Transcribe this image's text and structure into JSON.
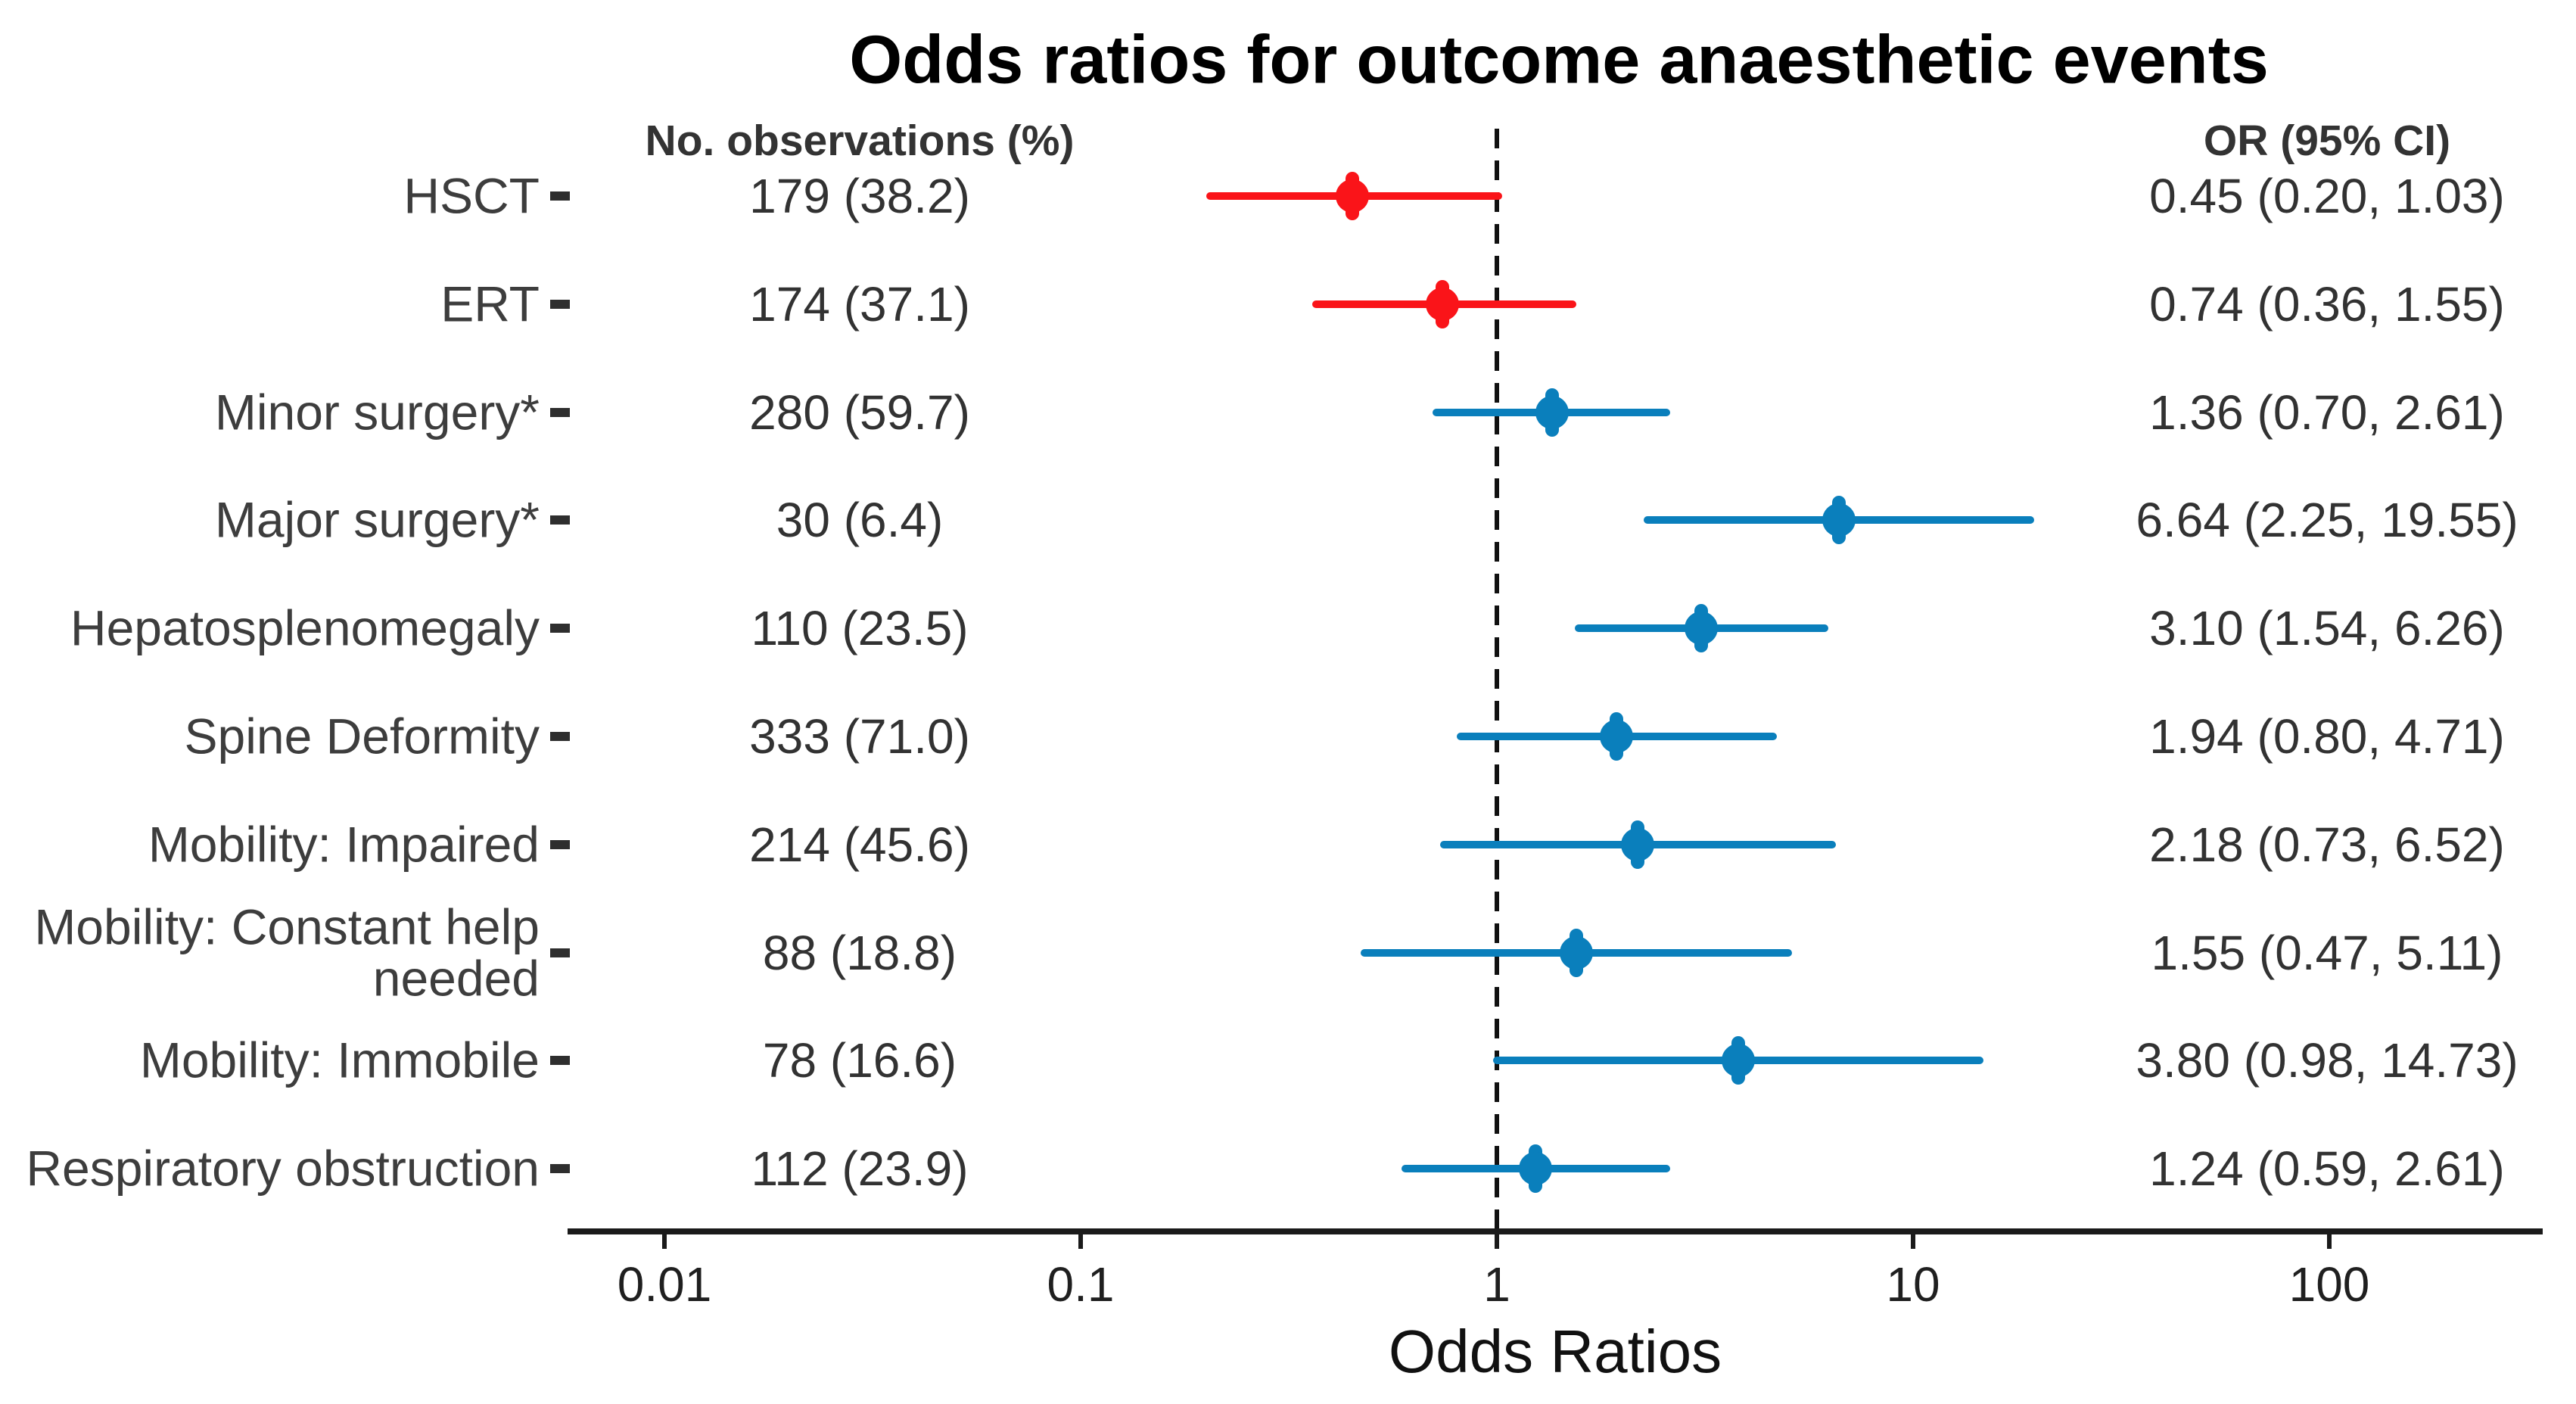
{
  "chart_data": {
    "type": "forest",
    "title": "Odds ratios for outcome anaesthetic events",
    "xlabel": "Odds Ratios",
    "x_scale": "log10",
    "x_axis_range": [
      0.004,
      0.004,
      300,
      300
    ],
    "x_ticks": [
      {
        "value": 0.01,
        "label": "0.01"
      },
      {
        "value": 0.1,
        "label": "0.1"
      },
      {
        "value": 1,
        "label": "1"
      },
      {
        "value": 10,
        "label": "10"
      },
      {
        "value": 100,
        "label": "100"
      }
    ],
    "reference_line": 1,
    "legend_position": "none",
    "grid": false,
    "columns": {
      "observations": "No. observations (%)",
      "or_ci": "OR (95% CI)"
    },
    "colors": {
      "red": "#fa1419",
      "blue": "#0a7fbc"
    },
    "rows": [
      {
        "label": "HSCT",
        "observations": "179 (38.2)",
        "or": 0.45,
        "ci_low": 0.2,
        "ci_high": 1.03,
        "or_ci_text": "0.45 (0.20, 1.03)",
        "color": "red"
      },
      {
        "label": "ERT",
        "observations": "174 (37.1)",
        "or": 0.74,
        "ci_low": 0.36,
        "ci_high": 1.55,
        "or_ci_text": "0.74 (0.36, 1.55)",
        "color": "red"
      },
      {
        "label": "Minor surgery*",
        "observations": "280 (59.7)",
        "or": 1.36,
        "ci_low": 0.7,
        "ci_high": 2.61,
        "or_ci_text": "1.36 (0.70, 2.61)",
        "color": "blue"
      },
      {
        "label": "Major surgery*",
        "observations": "30 (6.4)",
        "or": 6.64,
        "ci_low": 2.25,
        "ci_high": 19.55,
        "or_ci_text": "6.64 (2.25, 19.55)",
        "color": "blue"
      },
      {
        "label": "Hepatosplenomegaly",
        "observations": "110 (23.5)",
        "or": 3.1,
        "ci_low": 1.54,
        "ci_high": 6.26,
        "or_ci_text": "3.10 (1.54, 6.26)",
        "color": "blue"
      },
      {
        "label": "Spine Deformity",
        "observations": "333 (71.0)",
        "or": 1.94,
        "ci_low": 0.8,
        "ci_high": 4.71,
        "or_ci_text": "1.94 (0.80, 4.71)",
        "color": "blue"
      },
      {
        "label": "Mobility: Impaired",
        "observations": "214 (45.6)",
        "or": 2.18,
        "ci_low": 0.73,
        "ci_high": 6.52,
        "or_ci_text": "2.18 (0.73, 6.52)",
        "color": "blue"
      },
      {
        "label": "Mobility: Constant help\nneeded",
        "observations": "88 (18.8)",
        "or": 1.55,
        "ci_low": 0.47,
        "ci_high": 5.11,
        "or_ci_text": "1.55 (0.47, 5.11)",
        "color": "blue"
      },
      {
        "label": "Mobility: Immobile",
        "observations": "78 (16.6)",
        "or": 3.8,
        "ci_low": 0.98,
        "ci_high": 14.73,
        "or_ci_text": "3.80 (0.98, 14.73)",
        "color": "blue"
      },
      {
        "label": "Respiratory obstruction",
        "observations": "112 (23.9)",
        "or": 1.24,
        "ci_low": 0.59,
        "ci_high": 2.61,
        "or_ci_text": "1.24 (0.59, 2.61)",
        "color": "blue"
      }
    ]
  }
}
